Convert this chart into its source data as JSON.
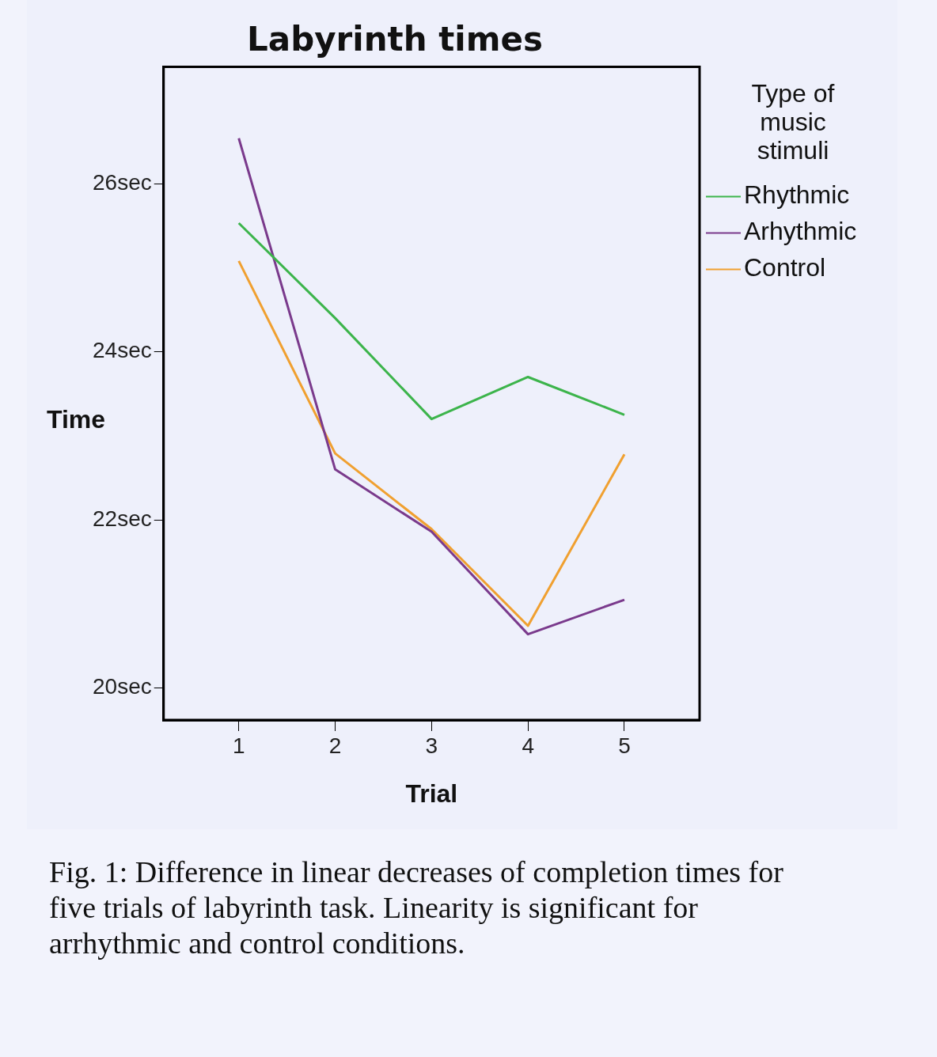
{
  "chart_data": {
    "type": "line",
    "title": "Labyrinth times",
    "xlabel": "Trial",
    "ylabel": "Time",
    "legend_title": "Type of music stimuli",
    "x": [
      1,
      2,
      3,
      4,
      5
    ],
    "series": [
      {
        "name": "Rhythmic",
        "color": "#3cb44b",
        "values": [
          25.53,
          24.4,
          23.2,
          23.7,
          23.25
        ]
      },
      {
        "name": "Arhythmic",
        "color": "#7a3a8c",
        "values": [
          26.54,
          22.6,
          21.86,
          20.64,
          21.05
        ]
      },
      {
        "name": "Control",
        "color": "#f0a030",
        "values": [
          25.08,
          22.79,
          21.89,
          20.74,
          22.78
        ]
      }
    ],
    "xlim": [
      0.22,
      5.78
    ],
    "xticks": [
      1,
      2,
      3,
      4,
      5
    ],
    "ylim": [
      19.62,
      27.39
    ],
    "yticks": [
      {
        "value": 20,
        "label": "20sec"
      },
      {
        "value": 22,
        "label": "22sec"
      },
      {
        "value": 24,
        "label": "24sec"
      },
      {
        "value": 26,
        "label": "26sec"
      }
    ],
    "grid": false,
    "legend": "right",
    "marker": "none",
    "line_style": "solid",
    "annotations": [
      "Fig. 1: Difference in linear decreases of completion times for five trials of labyrinth task. Linearity is significant for arrhythmic and control conditions."
    ]
  }
}
